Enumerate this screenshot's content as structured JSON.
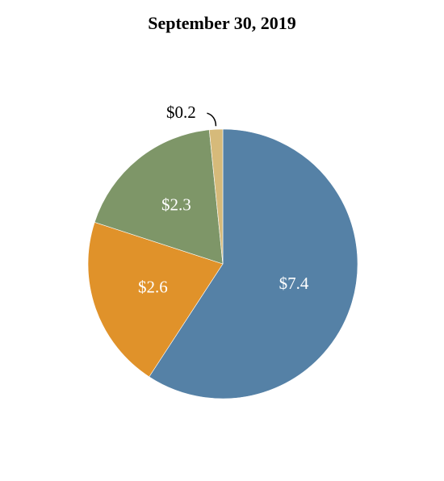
{
  "chart_data": {
    "type": "pie",
    "title": "September 30, 2019",
    "slices": [
      {
        "label": "$7.4",
        "value": 7.4,
        "color": "#5581a6",
        "label_color": "#ffffff"
      },
      {
        "label": "$2.6",
        "value": 2.6,
        "color": "#e0922a",
        "label_color": "#ffffff"
      },
      {
        "label": "$2.3",
        "value": 2.3,
        "color": "#7e9668",
        "label_color": "#ffffff"
      },
      {
        "label": "$0.2",
        "value": 0.2,
        "color": "#d6ba7a",
        "label_color": "#000000"
      }
    ]
  }
}
